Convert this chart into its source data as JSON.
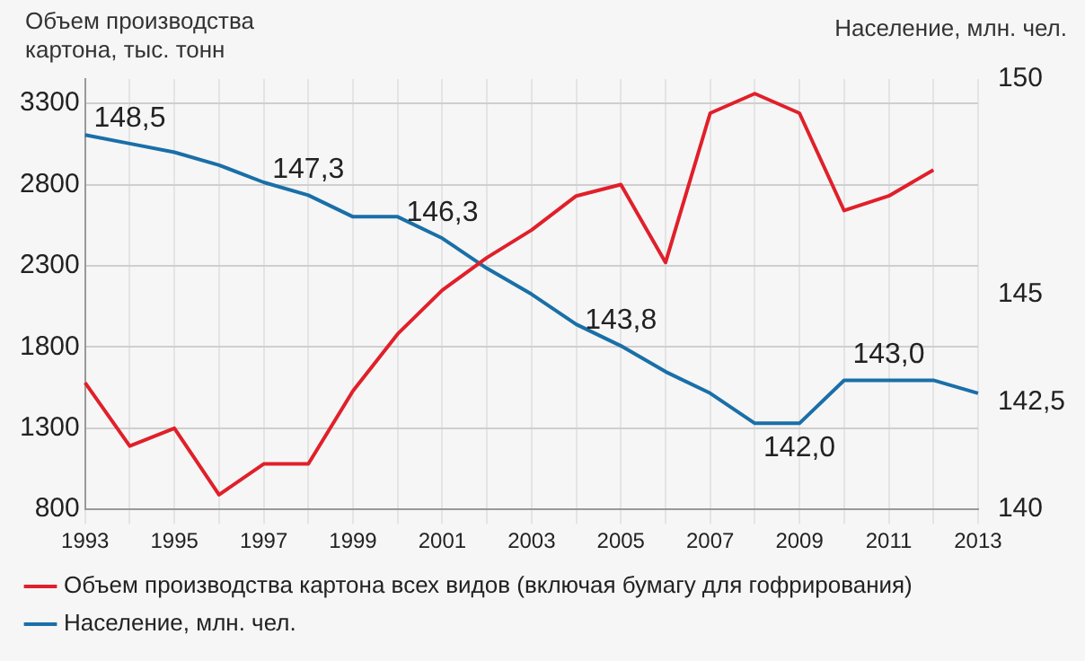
{
  "chart_data": {
    "type": "line",
    "ylabel": "Объем производства\nкартона, тыс. тонн",
    "y2label": "Население, млн. чел.",
    "categories": [
      "1993",
      null,
      "1995",
      null,
      "1997",
      null,
      "1999",
      null,
      "2001",
      null,
      "2003",
      null,
      "2005",
      null,
      "2007",
      null,
      "2009",
      null,
      "2011",
      null,
      "2013"
    ],
    "series": [
      {
        "name": "Объем производства картона всех видов (включая бумагу для гофрирования)",
        "color": "#e0202a",
        "values": [
          1580,
          1190,
          1300,
          890,
          1080,
          1080,
          1530,
          1880,
          2150,
          2350,
          2520,
          2730,
          2800,
          2320,
          3240,
          3360,
          3240,
          2640,
          2730,
          2890,
          null
        ]
      },
      {
        "name": "Население, млн. чел.",
        "color": "#1a6fa8",
        "axis": "y2",
        "values": [
          148.7,
          148.5,
          148.3,
          148.0,
          147.6,
          147.3,
          146.8,
          146.8,
          146.3,
          145.6,
          145.0,
          144.3,
          143.8,
          143.2,
          142.7,
          142.0,
          142.0,
          143.0,
          143.0,
          143.0,
          142.7
        ],
        "value_labels": [
          null,
          "148,5",
          null,
          null,
          null,
          "147,3",
          null,
          null,
          "146,3",
          null,
          null,
          null,
          "143,8",
          null,
          null,
          null,
          "142,0",
          null,
          "143,0",
          null,
          null
        ]
      }
    ],
    "ylim": [
      800,
      3450
    ],
    "yticks": [
      800,
      1300,
      1800,
      2300,
      2800,
      3300
    ],
    "y2lim": [
      140,
      150
    ],
    "y2ticks": [
      140,
      {
        "value": 142.5,
        "label": "142,5"
      },
      145,
      150
    ],
    "grid": true,
    "legend": "bottom",
    "marker": "none",
    "line_style": "solid"
  }
}
